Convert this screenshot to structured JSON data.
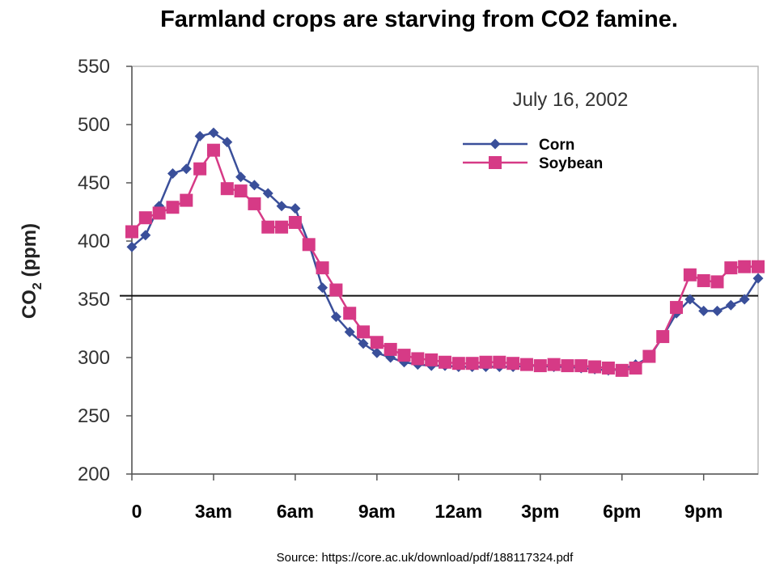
{
  "title": "Farmland crops are starving from CO2 famine.",
  "source": "Source: https://core.ac.uk/download/pdf/188117324.pdf",
  "chart_data": {
    "type": "line",
    "annotation": "July 16, 2002",
    "ylabel_main": "CO",
    "ylabel_sub": "2",
    "ylabel_unit": " (ppm)",
    "ylim": [
      200,
      550
    ],
    "yticks": [
      200,
      250,
      300,
      350,
      400,
      450,
      500,
      550
    ],
    "xlim": [
      0,
      23
    ],
    "xticks": [
      0,
      3,
      6,
      9,
      12,
      15,
      18,
      21
    ],
    "xtick_labels": [
      "0",
      "3am",
      "6am",
      "9am",
      "12am",
      "3pm",
      "6pm",
      "9pm"
    ],
    "reference_line": 353,
    "grid": false,
    "legend_position": "top-right",
    "series": [
      {
        "name": "Corn",
        "color": "#3a4f9a",
        "marker": "diamond",
        "x": [
          0,
          0.5,
          1,
          1.5,
          2,
          2.5,
          3,
          3.5,
          4,
          4.5,
          5,
          5.5,
          6,
          6.5,
          7,
          7.5,
          8,
          8.5,
          9,
          9.5,
          10,
          10.5,
          11,
          11.5,
          12,
          12.5,
          13,
          13.5,
          14,
          14.5,
          15,
          15.5,
          16,
          16.5,
          17,
          17.5,
          18,
          18.5,
          19,
          19.5,
          20,
          20.5,
          21,
          21.5,
          22,
          22.5,
          23
        ],
        "y": [
          395,
          405,
          430,
          458,
          462,
          490,
          493,
          485,
          455,
          448,
          441,
          430,
          428,
          398,
          360,
          335,
          322,
          312,
          304,
          300,
          296,
          294,
          293,
          293,
          292,
          292,
          292,
          292,
          292,
          293,
          293,
          292,
          292,
          291,
          290,
          289,
          290,
          294,
          300,
          318,
          338,
          350,
          340,
          340,
          345,
          350,
          368
        ]
      },
      {
        "name": "Soybean",
        "color": "#d63a86",
        "marker": "square",
        "x": [
          0,
          0.5,
          1,
          1.5,
          2,
          2.5,
          3,
          3.5,
          4,
          4.5,
          5,
          5.5,
          6,
          6.5,
          7,
          7.5,
          8,
          8.5,
          9,
          9.5,
          10,
          10.5,
          11,
          11.5,
          12,
          12.5,
          13,
          13.5,
          14,
          14.5,
          15,
          15.5,
          16,
          16.5,
          17,
          17.5,
          18,
          18.5,
          19,
          19.5,
          20,
          20.5,
          21,
          21.5,
          22,
          22.5,
          23
        ],
        "y": [
          408,
          420,
          424,
          429,
          435,
          462,
          478,
          445,
          443,
          432,
          412,
          412,
          416,
          397,
          377,
          358,
          338,
          322,
          313,
          307,
          302,
          299,
          298,
          296,
          295,
          295,
          296,
          296,
          295,
          294,
          293,
          294,
          293,
          293,
          292,
          291,
          289,
          291,
          301,
          318,
          343,
          371,
          366,
          365,
          377,
          378,
          378
        ]
      }
    ]
  }
}
